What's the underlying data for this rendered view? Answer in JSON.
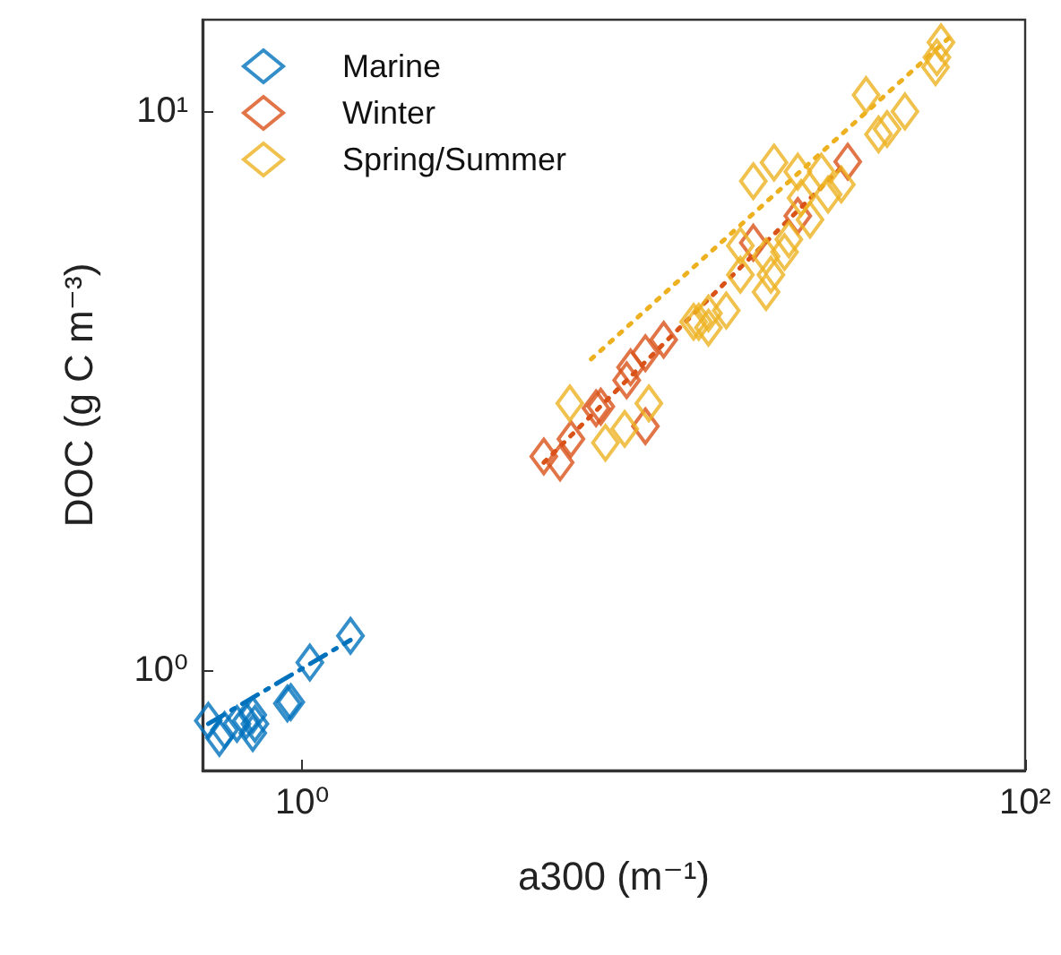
{
  "chart_data": {
    "type": "scatter",
    "xlabel": "a300 (m⁻¹)",
    "ylabel": "DOC (g C m⁻³)",
    "log": "xy",
    "xlim": [
      0.53,
      100
    ],
    "ylim": [
      0.66,
      14.6
    ],
    "xticks": [
      {
        "value": 1,
        "label": "10⁰"
      },
      {
        "value": 100,
        "label": "10²"
      }
    ],
    "yticks": [
      {
        "value": 1,
        "label": "10⁰"
      },
      {
        "value": 10,
        "label": "10¹"
      }
    ],
    "grid": false,
    "legend": "top left",
    "marker": "diamond",
    "series": [
      {
        "name": "Marine",
        "color": "#0072bd",
        "x": [
          0.55,
          0.59,
          0.61,
          0.66,
          0.7,
          0.73,
          0.74,
          0.73,
          0.91,
          0.93,
          1.05,
          1.36
        ],
        "values": [
          0.81,
          0.755,
          0.78,
          0.8,
          0.81,
          0.83,
          0.8,
          0.77,
          0.87,
          0.875,
          1.03,
          1.15
        ]
      },
      {
        "name": "Winter",
        "color": "#d95319",
        "x": [
          4.66,
          5.17,
          5.54,
          6.5,
          6.7,
          7.9,
          8.1,
          8.9,
          8.9,
          10.0,
          17.7,
          23.5,
          32.3
        ],
        "values": [
          2.41,
          2.35,
          2.59,
          2.94,
          2.96,
          3.3,
          3.48,
          2.73,
          3.69,
          3.9,
          5.82,
          6.5,
          8.13
        ]
      },
      {
        "name": "Spring/Summer",
        "color": "#edb120",
        "x": [
          58.5,
          57,
          56.5,
          36.3,
          46.5,
          41.5,
          39.3,
          17.7,
          20.2,
          23.5,
          27.3,
          28.5,
          24,
          31,
          25.4,
          22.2,
          21.6,
          19.2,
          16.3,
          16.3,
          19.8,
          19.2,
          14.9,
          13.3,
          12.5,
          5.5,
          6.9,
          7.8,
          9.1,
          13.3,
          12.1
        ],
        "values": [
          13.3,
          12.5,
          12.0,
          10.7,
          10.0,
          9.3,
          9.1,
          7.5,
          8.1,
          7.8,
          7.8,
          7.1,
          7.0,
          7.4,
          6.4,
          5.9,
          5.6,
          5.5,
          5.75,
          5.1,
          5.1,
          4.75,
          4.4,
          4.35,
          4.2,
          3.0,
          2.55,
          2.7,
          3.0,
          4.1,
          4.2
        ]
      },
      {
        "type": "line",
        "color": "#0072bd",
        "line_style": "dashed",
        "marker": "none",
        "x": [
          0.55,
          1.36
        ],
        "values": [
          0.8,
          1.13
        ]
      },
      {
        "type": "line",
        "color": "#d95319",
        "line_style": "dotted",
        "marker": "none",
        "x": [
          4.66,
          32
        ],
        "values": [
          2.35,
          8.1
        ]
      },
      {
        "type": "line",
        "color": "#edb120",
        "line_style": "dotted",
        "marker": "none",
        "x": [
          6.3,
          62
        ],
        "values": [
          3.6,
          13.6
        ]
      }
    ]
  }
}
